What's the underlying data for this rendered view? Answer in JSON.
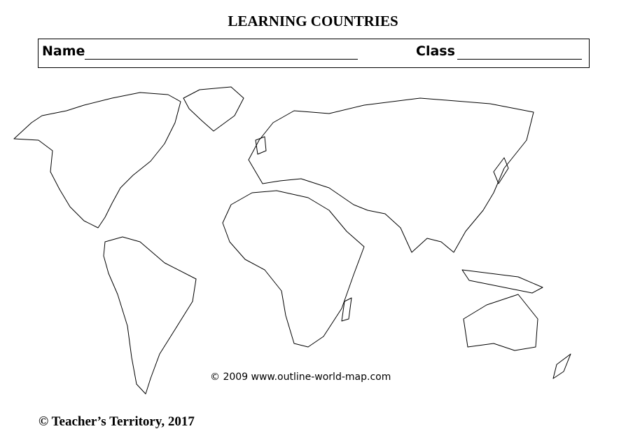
{
  "header": {
    "title": "LEARNING COUNTRIES"
  },
  "form": {
    "name_label": "Name",
    "class_label": "Class"
  },
  "map": {
    "credit": "© 2009 www.outline-world-map.com"
  },
  "footer": {
    "copyright": "© Teacher’s Territory, 2017"
  }
}
